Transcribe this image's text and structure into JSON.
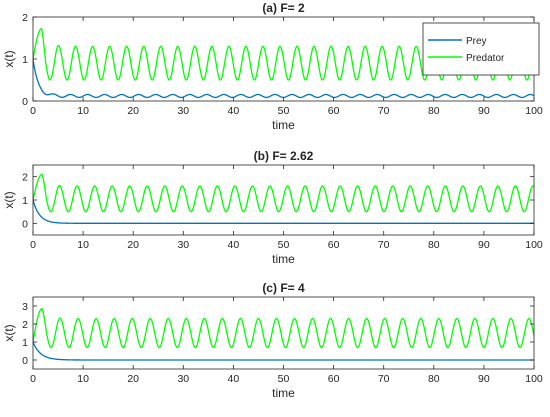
{
  "chart_data": [
    {
      "type": "line",
      "title": "(a) F= 2",
      "xlabel": "time",
      "ylabel": "x(t)",
      "xlim": [
        0,
        100
      ],
      "ylim": [
        0,
        2
      ],
      "xticks": [
        0,
        10,
        20,
        30,
        40,
        50,
        60,
        70,
        80,
        90,
        100
      ],
      "yticks": [
        0,
        1,
        2
      ],
      "grid": false,
      "legend": {
        "placement": "right-outside",
        "entries": [
          "Prey",
          "Predator"
        ]
      },
      "series": [
        {
          "name": "Prey",
          "color": "#0072BD",
          "model": {
            "start": 1.0,
            "decay": 1.0,
            "mean": 0.12,
            "amp": 0.035,
            "period": 3.4,
            "phase": 0.3
          }
        },
        {
          "name": "Predator",
          "color": "#00FF00",
          "model": {
            "start": 1.0,
            "peak": 1.72,
            "peak_t": 1.7,
            "mean": 0.9,
            "amp": 0.4,
            "period": 3.4,
            "phase": 0.2
          }
        }
      ]
    },
    {
      "type": "line",
      "title": "(b) F= 2.62",
      "xlabel": "time",
      "ylabel": "x(t)",
      "xlim": [
        0,
        100
      ],
      "ylim": [
        -0.5,
        2.5
      ],
      "xticks": [
        0,
        10,
        20,
        30,
        40,
        50,
        60,
        70,
        80,
        90,
        100
      ],
      "yticks": [
        0,
        1,
        2
      ],
      "grid": false,
      "series": [
        {
          "name": "Prey",
          "color": "#0072BD",
          "model": {
            "start": 1.0,
            "decay": 1.3,
            "mean": 0.0,
            "amp": 0.0,
            "period": 3.5,
            "phase": 0.0
          }
        },
        {
          "name": "Predator",
          "color": "#00FF00",
          "model": {
            "start": 1.0,
            "peak": 2.1,
            "peak_t": 1.8,
            "mean": 1.05,
            "amp": 0.55,
            "period": 3.5,
            "phase": 0.2
          }
        }
      ]
    },
    {
      "type": "line",
      "title": "(c) F= 4",
      "xlabel": "time",
      "ylabel": "x(t)",
      "xlim": [
        0,
        100
      ],
      "ylim": [
        -0.5,
        3.5
      ],
      "xticks": [
        0,
        10,
        20,
        30,
        40,
        50,
        60,
        70,
        80,
        90,
        100
      ],
      "yticks": [
        0,
        1,
        2,
        3
      ],
      "grid": false,
      "series": [
        {
          "name": "Prey",
          "color": "#0072BD",
          "model": {
            "start": 1.0,
            "decay": 1.5,
            "mean": 0.0,
            "amp": 0.0,
            "period": 3.6,
            "phase": 0.0
          }
        },
        {
          "name": "Predator",
          "color": "#00FF00",
          "model": {
            "start": 1.0,
            "peak": 2.85,
            "peak_t": 1.8,
            "mean": 1.5,
            "amp": 0.8,
            "period": 3.6,
            "phase": 0.2
          }
        }
      ]
    }
  ]
}
